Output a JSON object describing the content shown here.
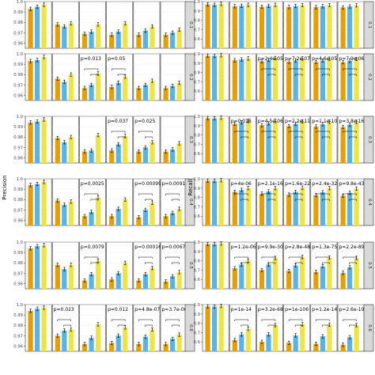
{
  "chart_data": [
    {
      "type": "bar",
      "ylabel": "Precision",
      "ylim": [
        0.955,
        1.0
      ],
      "yticks": [
        "0.96",
        "0.97",
        "0.98",
        "0.99",
        "1.0"
      ],
      "colors": [
        "#E69F00",
        "#56B4E9",
        "#F0E442"
      ],
      "rows": [
        {
          "strip": "0.1",
          "panels": [
            {
              "values": [
                0.993,
                0.995,
                0.997
              ],
              "p": ""
            },
            {
              "values": [
                0.978,
                0.976,
                0.979
              ],
              "p": ""
            },
            {
              "values": [
                0.969,
                0.971,
                0.978
              ],
              "p": ""
            },
            {
              "values": [
                0.968,
                0.971,
                0.979
              ],
              "p": ""
            },
            {
              "values": [
                0.968,
                0.972,
                0.976
              ],
              "p": ""
            },
            {
              "values": [
                0.968,
                0.97,
                0.973
              ],
              "p": ""
            }
          ]
        },
        {
          "strip": "0.2",
          "panels": [
            {
              "values": [
                0.993,
                0.994,
                0.997
              ],
              "p": ""
            },
            {
              "values": [
                0.976,
                0.973,
                0.98
              ],
              "p": ""
            },
            {
              "values": [
                0.967,
                0.97,
                0.981
              ],
              "p": "p=0.013"
            },
            {
              "values": [
                0.968,
                0.972,
                0.978
              ],
              "p": "p=0.05"
            },
            {
              "values": [
                0.967,
                0.97,
                0.974
              ],
              "p": ""
            },
            {
              "values": [
                0.967,
                0.969,
                0.972
              ],
              "p": ""
            }
          ]
        },
        {
          "strip": "0.3",
          "panels": [
            {
              "values": [
                0.994,
                0.995,
                0.997
              ],
              "p": ""
            },
            {
              "values": [
                0.979,
                0.975,
                0.98
              ],
              "p": ""
            },
            {
              "values": [
                0.966,
                0.967,
                0.982
              ],
              "p": ""
            },
            {
              "values": [
                0.967,
                0.973,
                0.981
              ],
              "p": "p=0.037"
            },
            {
              "values": [
                0.966,
                0.97,
                0.975
              ],
              "p": "p=0.025"
            },
            {
              "values": [
                0.966,
                0.968,
                0.974
              ],
              "p": ""
            }
          ]
        },
        {
          "strip": "0.4",
          "panels": [
            {
              "values": [
                0.994,
                0.995,
                0.997
              ],
              "p": ""
            },
            {
              "values": [
                0.979,
                0.975,
                0.978
              ],
              "p": ""
            },
            {
              "values": [
                0.964,
                0.968,
                0.982
              ],
              "p": "p=0.0025"
            },
            {
              "values": [
                0.964,
                0.971,
                0.98
              ],
              "p": ""
            },
            {
              "values": [
                0.963,
                0.97,
                0.977
              ],
              "p": "p=0.00099"
            },
            {
              "values": [
                0.964,
                0.967,
                0.971
              ],
              "p": "p=0.0091"
            }
          ]
        },
        {
          "strip": "0.5",
          "panels": [
            {
              "values": [
                0.994,
                0.996,
                0.997
              ],
              "p": ""
            },
            {
              "values": [
                0.978,
                0.974,
                0.978
              ],
              "p": ""
            },
            {
              "values": [
                0.963,
                0.969,
                0.982
              ],
              "p": "p=0.0079"
            },
            {
              "values": [
                0.964,
                0.97,
                0.98
              ],
              "p": ""
            },
            {
              "values": [
                0.963,
                0.969,
                0.975
              ],
              "p": "p=0.00016"
            },
            {
              "values": [
                0.962,
                0.967,
                0.971
              ],
              "p": "p=0.0067"
            }
          ]
        },
        {
          "strip": "0.6",
          "panels": [
            {
              "values": [
                0.994,
                0.996,
                0.997
              ],
              "p": ""
            },
            {
              "values": [
                0.97,
                0.975,
                0.976
              ],
              "p": "p=0.023"
            },
            {
              "values": [
                0.962,
                0.968,
                0.981
              ],
              "p": ""
            },
            {
              "values": [
                0.963,
                0.97,
                0.978
              ],
              "p": "p=0.012"
            },
            {
              "values": [
                0.962,
                0.969,
                0.976
              ],
              "p": "p=4.8e-07"
            },
            {
              "values": [
                0.962,
                0.967,
                0.971
              ],
              "p": "p=3.7e-06"
            }
          ]
        }
      ]
    },
    {
      "type": "bar",
      "ylabel": "Recall",
      "ylim": [
        0.5,
        1.0
      ],
      "yticks": [
        "0.6",
        "0.7",
        "0.8",
        "0.9",
        "1.0"
      ],
      "colors": [
        "#E69F00",
        "#56B4E9",
        "#F0E442"
      ],
      "rows": [
        {
          "strip": "0.1",
          "panels": [
            {
              "values": [
                0.97,
                0.965,
                0.975
              ],
              "p": ""
            },
            {
              "values": [
                0.95,
                0.955,
                0.965
              ],
              "p": ""
            },
            {
              "values": [
                0.945,
                0.955,
                0.965
              ],
              "p": ""
            },
            {
              "values": [
                0.942,
                0.952,
                0.962
              ],
              "p": ""
            },
            {
              "values": [
                0.94,
                0.95,
                0.962
              ],
              "p": ""
            },
            {
              "values": [
                0.938,
                0.948,
                0.96
              ],
              "p": ""
            }
          ]
        },
        {
          "strip": "0.2",
          "panels": [
            {
              "values": [
                0.98,
                0.978,
                0.985
              ],
              "p": ""
            },
            {
              "values": [
                0.93,
                0.94,
                0.95
              ],
              "p": ""
            },
            {
              "values": [
                0.92,
                0.935,
                0.955
              ],
              "p": "p=2.4e-05"
            },
            {
              "values": [
                0.915,
                0.93,
                0.95
              ],
              "p": "p=7.2e-07"
            },
            {
              "values": [
                0.912,
                0.928,
                0.948
              ],
              "p": "p=4.6e-05"
            },
            {
              "values": [
                0.91,
                0.925,
                0.945
              ],
              "p": "p=7.9e-06"
            }
          ]
        },
        {
          "strip": "0.3",
          "panels": [
            {
              "values": [
                0.98,
                0.978,
                0.985
              ],
              "p": ""
            },
            {
              "values": [
                0.92,
                0.935,
                0.95
              ],
              "p": "p=0.016"
            },
            {
              "values": [
                0.905,
                0.925,
                0.95
              ],
              "p": "p=4.5e-06"
            },
            {
              "values": [
                0.895,
                0.92,
                0.945
              ],
              "p": "p=2.2e-11"
            },
            {
              "values": [
                0.89,
                0.915,
                0.942
              ],
              "p": "p=1.1e-10"
            },
            {
              "values": [
                0.885,
                0.91,
                0.94
              ],
              "p": "p=3.8e-16"
            }
          ]
        },
        {
          "strip": "0.4",
          "panels": [
            {
              "values": [
                0.98,
                0.978,
                0.985
              ],
              "p": ""
            },
            {
              "values": [
                0.86,
                0.88,
                0.9
              ],
              "p": "p=4e-06"
            },
            {
              "values": [
                0.84,
                0.865,
                0.9
              ],
              "p": "p=2.1e-16"
            },
            {
              "values": [
                0.83,
                0.86,
                0.905
              ],
              "p": "p=1.6e-22"
            },
            {
              "values": [
                0.825,
                0.855,
                0.9
              ],
              "p": "p=2.4e-32"
            },
            {
              "values": [
                0.82,
                0.85,
                0.895
              ],
              "p": "p=9.8e-43"
            }
          ]
        },
        {
          "strip": "0.5",
          "panels": [
            {
              "values": [
                0.98,
                0.978,
                0.985
              ],
              "p": ""
            },
            {
              "values": [
                0.72,
                0.76,
                0.8
              ],
              "p": "p=1.2e-06"
            },
            {
              "values": [
                0.7,
                0.76,
                0.83
              ],
              "p": "p=9.9e-30"
            },
            {
              "values": [
                0.69,
                0.75,
                0.84
              ],
              "p": "p=2.8e-48"
            },
            {
              "values": [
                0.68,
                0.74,
                0.835
              ],
              "p": "p=1.3e-75"
            },
            {
              "values": [
                0.67,
                0.73,
                0.83
              ],
              "p": "p=2.2e-89"
            }
          ]
        },
        {
          "strip": "0.6",
          "panels": [
            {
              "values": [
                0.98,
                0.978,
                0.985
              ],
              "p": ""
            },
            {
              "values": [
                0.62,
                0.68,
                0.74
              ],
              "p": "p=1e-14"
            },
            {
              "values": [
                0.6,
                0.68,
                0.78
              ],
              "p": "p=3.2e-68"
            },
            {
              "values": [
                0.59,
                0.67,
                0.79
              ],
              "p": "p=1e-106"
            },
            {
              "values": [
                0.58,
                0.66,
                0.785
              ],
              "p": "p=1.2e-141"
            },
            {
              "values": [
                0.57,
                0.65,
                0.78
              ],
              "p": "p=2.6e-194"
            }
          ]
        }
      ]
    }
  ]
}
